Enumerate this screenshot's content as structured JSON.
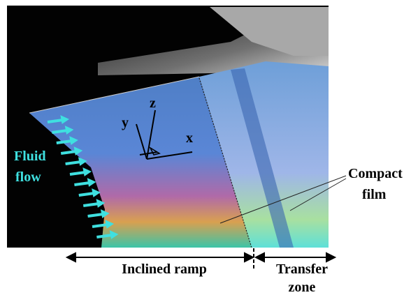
{
  "labels": {
    "fluid_flow": [
      "Fluid",
      "flow"
    ],
    "axes": {
      "x": "x",
      "y": "y",
      "z": "z"
    },
    "compact_film": [
      "Compact",
      "film"
    ],
    "inclined_ramp": "Inclined ramp",
    "transfer_zone": [
      "Transfer",
      "zone"
    ]
  }
}
